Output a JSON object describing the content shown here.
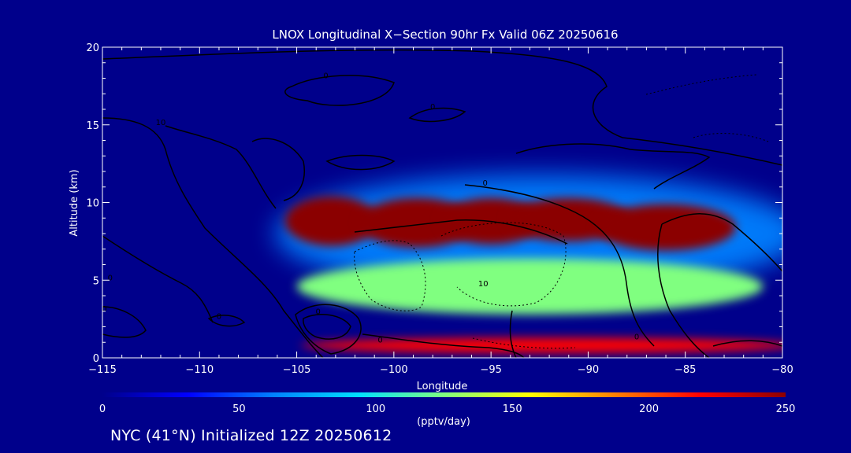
{
  "chart_data": {
    "type": "heatmap",
    "title": "LNOX Longitudinal X−Section 90hr  Fx Valid 06Z 20250616",
    "xlabel": "Longitude",
    "ylabel": "Altitude (km)",
    "xlim": [
      -115,
      -80
    ],
    "ylim": [
      0,
      20
    ],
    "x_ticks": [
      -115,
      -110,
      -105,
      -100,
      -95,
      -90,
      -85,
      -80
    ],
    "x_tick_labels": [
      "−115",
      "−110",
      "−105",
      "−100",
      "−95",
      "−90",
      "−85",
      "−80"
    ],
    "y_ticks": [
      0,
      5,
      10,
      15,
      20
    ],
    "y_tick_labels": [
      "0",
      "5",
      "10",
      "15",
      "20"
    ],
    "colorbar": {
      "min": 0,
      "max": 250,
      "ticks": [
        0,
        50,
        100,
        150,
        200,
        250
      ],
      "tick_labels": [
        "0",
        "50",
        "100",
        "150",
        "200",
        "250"
      ],
      "label": "(pptv/day)",
      "colors": [
        "#00008b",
        "#0000ff",
        "#0080ff",
        "#00e0ff",
        "#80ff80",
        "#ffff00",
        "#ff8000",
        "#ff0000",
        "#8b0000"
      ]
    },
    "field_blobs": [
      {
        "name": "upper-layer-halo",
        "cx": -92.5,
        "cy": 8.0,
        "rx": 13.6,
        "ry": 3.8,
        "value": 70
      },
      {
        "name": "upper-layer-1",
        "cx": -103.2,
        "cy": 8.8,
        "rx": 2.4,
        "ry": 1.6,
        "value": 250
      },
      {
        "name": "upper-layer-2",
        "cx": -98.8,
        "cy": 8.7,
        "rx": 3.0,
        "ry": 1.6,
        "value": 250
      },
      {
        "name": "upper-layer-3",
        "cx": -95.0,
        "cy": 8.8,
        "rx": 2.6,
        "ry": 1.5,
        "value": 250
      },
      {
        "name": "upper-layer-4",
        "cx": -91.0,
        "cy": 8.9,
        "rx": 3.2,
        "ry": 1.4,
        "value": 250
      },
      {
        "name": "upper-layer-5",
        "cx": -86.0,
        "cy": 8.4,
        "rx": 3.6,
        "ry": 1.5,
        "value": 250
      },
      {
        "name": "mid-layer",
        "cx": -93.0,
        "cy": 4.6,
        "rx": 12.0,
        "ry": 1.8,
        "value": 110
      },
      {
        "name": "surface-layer",
        "cx": -92.0,
        "cy": 0.8,
        "rx": 12.8,
        "ry": 0.5,
        "value": 220
      }
    ],
    "contour_labels": [
      {
        "text": "0",
        "x": -103.5,
        "y": 18.0
      },
      {
        "text": "0",
        "x": -98.0,
        "y": 16.0
      },
      {
        "text": "10",
        "x": -112.0,
        "y": 15.0
      },
      {
        "text": "0",
        "x": -95.3,
        "y": 11.1
      },
      {
        "text": "10",
        "x": -95.4,
        "y": 4.6
      },
      {
        "text": "0",
        "x": -114.6,
        "y": 5.0
      },
      {
        "text": "0",
        "x": -114.9,
        "y": 3.0
      },
      {
        "text": "0",
        "x": -109.0,
        "y": 2.5
      },
      {
        "text": "0",
        "x": -103.9,
        "y": 2.8
      },
      {
        "text": "0",
        "x": -100.7,
        "y": 1.0
      },
      {
        "text": "0",
        "x": -87.5,
        "y": 1.2
      }
    ],
    "footer": "NYC (41°N) Initialized 12Z 20250612"
  }
}
